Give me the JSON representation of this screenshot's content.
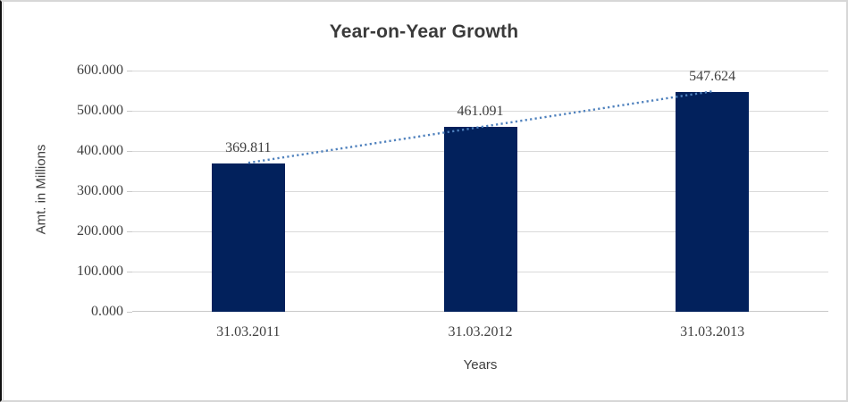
{
  "chart_data": {
    "type": "bar",
    "title": "Year-on-Year Growth",
    "xlabel": "Years",
    "ylabel": "Amt. in Millions",
    "categories": [
      "31.03.2011",
      "31.03.2012",
      "31.03.2013"
    ],
    "values": [
      369.811,
      461.091,
      547.624
    ],
    "value_labels": [
      "369.811",
      "461.091",
      "547.624"
    ],
    "ylim": [
      0,
      600
    ],
    "ytick_step": 100,
    "ytick_labels": [
      "0.000",
      "100.000",
      "200.000",
      "300.000",
      "400.000",
      "500.000",
      "600.000"
    ],
    "grid": "horizontal",
    "legend_position": "none",
    "trendline": "linear-dotted",
    "colors": {
      "bar": "#02215c",
      "trendline": "#4f81bd",
      "gridline": "#d9d9d9",
      "axis_line": "#c9c9c9",
      "text": "#3f3f3f",
      "title_text": "#3a3a3a"
    }
  }
}
